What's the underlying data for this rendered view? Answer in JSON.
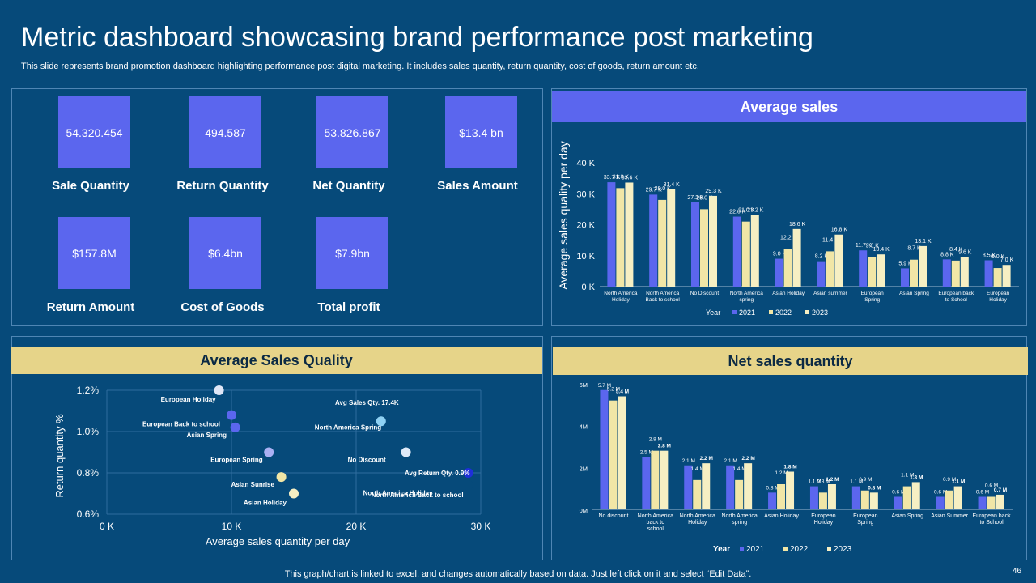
{
  "title": "Metric dashboard showcasing brand performance post marketing",
  "subtitle": "This slide represents brand promotion dashboard highlighting performance post digital marketing. It includes sales quantity, return quantity, cost of goods, return amount etc.",
  "kpis": [
    {
      "value": "54.320.454",
      "label": "Sale Quantity"
    },
    {
      "value": "494.587",
      "label": "Return Quantity"
    },
    {
      "value": "53.826.867",
      "label": "Net Quantity"
    },
    {
      "value": "$13.4 bn",
      "label": "Sales Amount"
    },
    {
      "value": "$157.8M",
      "label": "Return Amount"
    },
    {
      "value": "$6.4bn",
      "label": "Cost of Goods"
    },
    {
      "value": "$7.9bn",
      "label": "Total profit"
    }
  ],
  "colors": {
    "background": "#064a7a",
    "tile": "#5b66ee",
    "series_2021": "#5b66ee",
    "series_2022": "#f1e6a6",
    "series_2023": "#f6efc3",
    "band_blue": "#5b66ee",
    "band_gold": "#e6d489"
  },
  "chart_data": [
    {
      "type": "bar",
      "title": "Average sales",
      "ylabel": "Average sales quality per day",
      "ylim": [
        0,
        40000
      ],
      "yticks": [
        "0 K",
        "10 K",
        "20 K",
        "30 K",
        "40 K"
      ],
      "categories": [
        "North America Holiday",
        "North America Back to school",
        "No Discount",
        "North America spring",
        "Asian Holiday",
        "Asian summer",
        "European Spring",
        "Asian Spring",
        "European back to School",
        "European Holiday"
      ],
      "legend_title": "Year",
      "series": [
        {
          "name": "2021",
          "values": [
            33700,
            29700,
            27200,
            22600,
            9000,
            8200,
            11700,
            5900,
            8800,
            8500
          ],
          "labels": [
            "33.7 K",
            "29.7 K",
            "27.2 K",
            "22.6 K",
            "9.0 K",
            "8.2 K",
            "11.7 K",
            "5.9 K",
            "8.8 K",
            "8.5 K"
          ]
        },
        {
          "name": "2022",
          "values": [
            31800,
            28000,
            25000,
            21000,
            12200,
            11400,
            9600,
            8700,
            8400,
            6000
          ],
          "labels": [
            "31.8 K",
            "28.0 K",
            "25.0 K",
            "21.0 K",
            "12.2 K",
            "11.4 K",
            "9.6 K",
            "8.7 K",
            "8.4 K",
            "6.0 K"
          ]
        },
        {
          "name": "2023",
          "values": [
            33600,
            31400,
            29300,
            23200,
            18600,
            16800,
            10400,
            13100,
            9600,
            7000
          ],
          "labels": [
            "33.6 K",
            "31.4 K",
            "29.3 K",
            "23.2 K",
            "18.6 K",
            "16.8 K",
            "10.4 K",
            "13.1 K",
            "9.6 K",
            "7.0 K"
          ]
        }
      ]
    },
    {
      "type": "scatter",
      "title": "Average Sales Quality",
      "xlabel": "Average  sales quantity per day",
      "ylabel": "Return quantity %",
      "xlim": [
        0,
        30000
      ],
      "ylim": [
        0.6,
        1.2
      ],
      "xticks": [
        "0 K",
        "10 K",
        "20 K",
        "30 K"
      ],
      "yticks": [
        "0.6%",
        "0.8%",
        "1.0%",
        "1.2%"
      ],
      "points": [
        {
          "label": "European Holiday",
          "x": 9000,
          "y": 1.2,
          "color": "#dfe6f6"
        },
        {
          "label": "European Back to school",
          "x": 10000,
          "y": 1.08,
          "color": "#5b66ee"
        },
        {
          "label": "Asian  Spring",
          "x": 10300,
          "y": 1.02,
          "color": "#5b66ee"
        },
        {
          "label": "European Spring",
          "x": 13000,
          "y": 0.9,
          "color": "#aab0f3"
        },
        {
          "label": "Asian  Sunrise",
          "x": 14000,
          "y": 0.78,
          "color": "#f1e6a6"
        },
        {
          "label": "Asian Holiday",
          "x": 15000,
          "y": 0.7,
          "color": "#f6efc3"
        },
        {
          "label": "North America Spring",
          "x": 22000,
          "y": 1.05,
          "color": "#8fd1f3"
        },
        {
          "label": "No Discount",
          "x": 24000,
          "y": 0.9,
          "color": "#dfeaf8"
        },
        {
          "label": "North America Back to school",
          "x": 29000,
          "y": 0.8,
          "color": "#1f2fd8"
        },
        {
          "label": "North America Holiday",
          "x": 29000,
          "y": 0.74,
          "color": "#064a7a"
        }
      ],
      "annotations": [
        "Avg Sales Qty. 17.4K",
        "Avg Return Qty. 0.9%"
      ]
    },
    {
      "type": "bar",
      "title": "Net sales quantity",
      "ylim": [
        0,
        6000000
      ],
      "yticks": [
        "0M",
        "2M",
        "4M",
        "6M"
      ],
      "categories": [
        "No discount",
        "North America back to school",
        "North America Holiday",
        "North America spring",
        "Asian Holiday",
        "European Holiday",
        "European Spring",
        "Asian Spring",
        "Asian Summer",
        "European back to School"
      ],
      "legend_title": "Year",
      "series": [
        {
          "name": "2021",
          "values": [
            5700000,
            2500000,
            2100000,
            2100000,
            800000,
            1100000,
            1100000,
            600000,
            600000,
            600000
          ],
          "labels": [
            "5.7 M",
            "2.5 M",
            "2.1 M",
            "2.1 M",
            "0.8 M",
            "1.1 M",
            "1.1 M",
            "0.6 M",
            "0.6 M",
            "0.6 M"
          ]
        },
        {
          "name": "2022",
          "values": [
            5200000,
            2800000,
            1400000,
            1400000,
            1200000,
            800000,
            900000,
            1100000,
            900000,
            600000
          ],
          "labels": [
            "5.2 M",
            "2.8 M",
            "1.4 M",
            "1.4 M",
            "1.2 M",
            "0.8 M",
            "0.9 M",
            "1.1 M",
            "0.9 M",
            "0.6 M"
          ]
        },
        {
          "name": "2023",
          "values": [
            5400000,
            2800000,
            2200000,
            2200000,
            1800000,
            1200000,
            800000,
            1300000,
            1100000,
            700000
          ],
          "labels": [
            "5.4 M",
            "2.8 M",
            "2.2 M",
            "2.2 M",
            "1.8 M",
            "1.2 M",
            "0.8 M",
            "1.3 M",
            "1.1 M",
            "0.7 M"
          ]
        }
      ]
    }
  ],
  "footer": "This graph/chart is linked to excel,  and changes automatically based on data. Just left click on it and select “Edit Data”.",
  "page_number": "46"
}
